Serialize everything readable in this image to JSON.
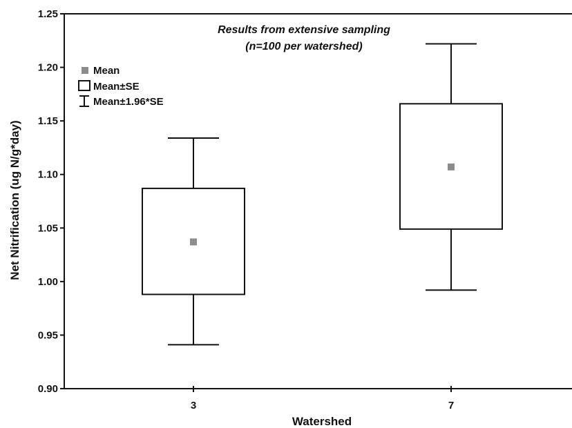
{
  "chart_data": {
    "type": "box",
    "title": "",
    "annotation": {
      "line1": "Results from extensive sampling",
      "line2": "(n=100 per watershed)"
    },
    "xlabel": "Watershed",
    "ylabel": "Net Nitrification (ug N/g*day)",
    "ylim": [
      0.9,
      1.25
    ],
    "yticks": [
      "0.90",
      "0.95",
      "1.00",
      "1.05",
      "1.10",
      "1.15",
      "1.20",
      "1.25"
    ],
    "categories": [
      "3",
      "7"
    ],
    "series": [
      {
        "category": "3",
        "mean": 1.037,
        "se_low": 0.988,
        "se_high": 1.087,
        "ci_low": 0.941,
        "ci_high": 1.134
      },
      {
        "category": "7",
        "mean": 1.107,
        "se_low": 1.049,
        "se_high": 1.166,
        "ci_low": 0.992,
        "ci_high": 1.222
      }
    ],
    "legend": {
      "position": "top-left",
      "items": [
        {
          "label": "Mean",
          "symbol": "square-marker"
        },
        {
          "label": "Mean±SE",
          "symbol": "box"
        },
        {
          "label": "Mean±1.96*SE",
          "symbol": "whisker"
        }
      ]
    },
    "colors": {
      "mean_marker": "#8c8c8c",
      "box_stroke": "#111111",
      "box_fill": "#ffffff",
      "axis": "#111111"
    },
    "grid": false
  }
}
